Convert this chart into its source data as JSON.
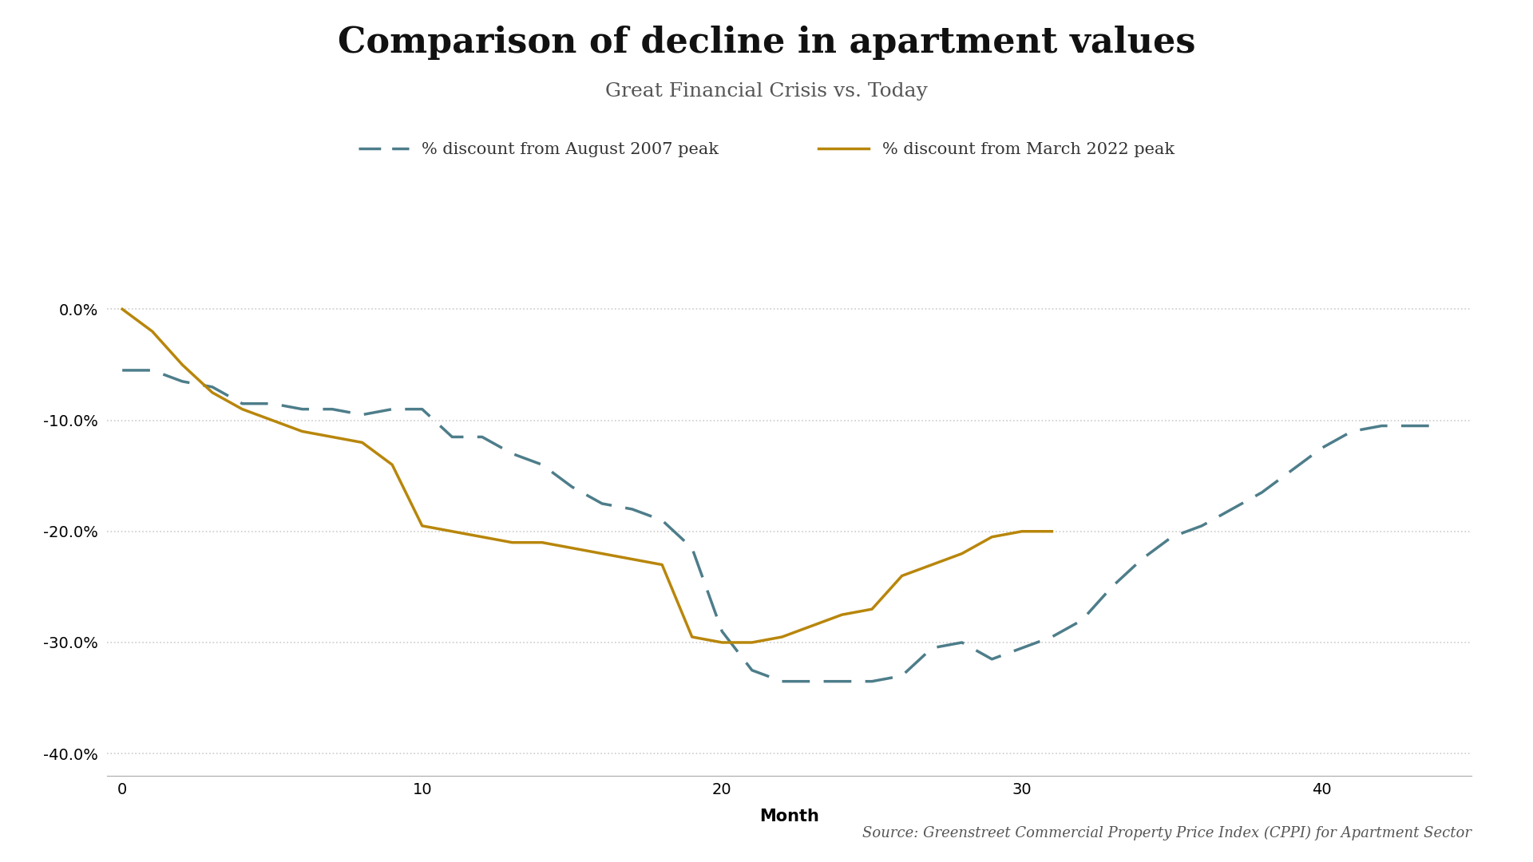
{
  "title": "Comparison of decline in apartment values",
  "subtitle": "Great Financial Crisis vs. Today",
  "xlabel": "Month",
  "source_text": "Source: Greenstreet Commercial Property Price Index (CPPI) for Apartment Sector",
  "legend_gfc": "% discount from August 2007 peak",
  "legend_today": "% discount from March 2022 peak",
  "gfc_x": [
    0,
    1,
    2,
    3,
    4,
    5,
    6,
    7,
    8,
    9,
    10,
    11,
    12,
    13,
    14,
    15,
    16,
    17,
    18,
    19,
    20,
    21,
    22,
    23,
    24,
    25,
    26,
    27,
    28,
    29,
    30,
    31,
    32,
    33,
    34,
    35,
    36,
    37,
    38,
    39,
    40,
    41,
    42,
    43,
    44
  ],
  "gfc_y": [
    -5.5,
    -5.5,
    -6.5,
    -7.0,
    -8.5,
    -8.5,
    -9.0,
    -9.0,
    -9.5,
    -9.0,
    -9.0,
    -11.5,
    -11.5,
    -13.0,
    -14.0,
    -16.0,
    -17.5,
    -18.0,
    -19.0,
    -21.5,
    -29.0,
    -32.5,
    -33.5,
    -33.5,
    -33.5,
    -33.5,
    -33.0,
    -30.5,
    -30.0,
    -31.5,
    -30.5,
    -29.5,
    -28.0,
    -25.0,
    -22.5,
    -20.5,
    -19.5,
    -18.0,
    -16.5,
    -14.5,
    -12.5,
    -11.0,
    -10.5,
    -10.5,
    -10.5
  ],
  "today_x": [
    0,
    1,
    2,
    3,
    4,
    5,
    6,
    7,
    8,
    9,
    10,
    11,
    12,
    13,
    14,
    15,
    16,
    17,
    18,
    19,
    20,
    21,
    22,
    23,
    24,
    25,
    26,
    27,
    28,
    29,
    30,
    31
  ],
  "today_y": [
    0.0,
    -2.0,
    -5.0,
    -7.5,
    -9.0,
    -10.0,
    -11.0,
    -11.5,
    -12.0,
    -14.0,
    -19.5,
    -20.0,
    -20.5,
    -21.0,
    -21.0,
    -21.5,
    -22.0,
    -22.5,
    -23.0,
    -29.5,
    -30.0,
    -30.0,
    -29.5,
    -28.5,
    -27.5,
    -27.0,
    -24.0,
    -23.0,
    -22.0,
    -20.5,
    -20.0,
    -20.0
  ],
  "gfc_color": "#4d7d8a",
  "today_color": "#b8860b",
  "background_color": "#ffffff",
  "grid_color": "#cccccc",
  "ylim": [
    -42,
    3
  ],
  "xlim": [
    -0.5,
    45
  ],
  "yticks": [
    0.0,
    -10.0,
    -20.0,
    -30.0,
    -40.0
  ],
  "xticks": [
    0,
    10,
    20,
    30,
    40
  ],
  "title_fontsize": 32,
  "subtitle_fontsize": 18,
  "axis_label_fontsize": 15,
  "tick_fontsize": 14,
  "legend_fontsize": 15,
  "source_fontsize": 13
}
